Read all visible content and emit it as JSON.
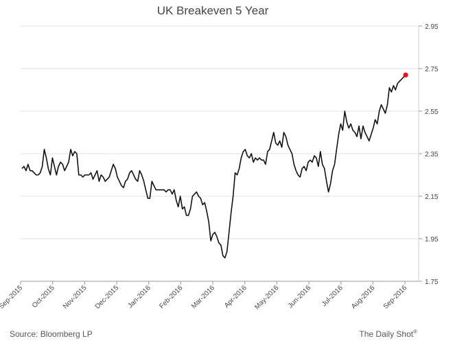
{
  "chart_data": {
    "type": "line",
    "title": "UK Breakeven 5 Year",
    "xlabel": "",
    "ylabel": "",
    "ylim": [
      1.75,
      2.95
    ],
    "yticks": [
      1.75,
      1.95,
      2.15,
      2.35,
      2.55,
      2.75,
      2.95
    ],
    "xticks": [
      "Sep-2015",
      "Oct-2015",
      "Nov-2015",
      "Dec-2015",
      "Jan-2016",
      "Feb-2016",
      "Mar-2016",
      "Apr-2016",
      "May-2016",
      "Jun-2016",
      "Jul-2016",
      "Aug-2016",
      "Sep-2016"
    ],
    "grid": true,
    "series": [
      {
        "color": "#111111",
        "values": [
          2.28,
          2.29,
          2.27,
          2.3,
          2.27,
          2.27,
          2.26,
          2.25,
          2.25,
          2.26,
          2.29,
          2.37,
          2.33,
          2.28,
          2.25,
          2.33,
          2.29,
          2.25,
          2.29,
          2.31,
          2.3,
          2.27,
          2.29,
          2.31,
          2.37,
          2.34,
          2.36,
          2.35,
          2.25,
          2.25,
          2.24,
          2.25,
          2.25,
          2.25,
          2.26,
          2.23,
          2.25,
          2.27,
          2.22,
          2.25,
          2.24,
          2.22,
          2.23,
          2.24,
          2.27,
          2.3,
          2.28,
          2.24,
          2.22,
          2.2,
          2.19,
          2.22,
          2.23,
          2.26,
          2.27,
          2.25,
          2.23,
          2.22,
          2.27,
          2.25,
          2.22,
          2.18,
          2.14,
          2.14,
          2.22,
          2.2,
          2.18,
          2.18,
          2.18,
          2.18,
          2.18,
          2.17,
          2.18,
          2.18,
          2.16,
          2.18,
          2.13,
          2.1,
          2.15,
          2.09,
          2.1,
          2.06,
          2.06,
          2.09,
          2.15,
          2.16,
          2.17,
          2.15,
          2.14,
          2.11,
          2.12,
          2.08,
          2.03,
          1.94,
          1.97,
          1.98,
          1.96,
          1.93,
          1.92,
          1.87,
          1.86,
          1.89,
          1.98,
          2.07,
          2.15,
          2.26,
          2.25,
          2.28,
          2.33,
          2.36,
          2.37,
          2.34,
          2.33,
          2.35,
          2.31,
          2.33,
          2.32,
          2.33,
          2.32,
          2.32,
          2.3,
          2.36,
          2.37,
          2.41,
          2.45,
          2.4,
          2.39,
          2.41,
          2.38,
          2.45,
          2.43,
          2.39,
          2.37,
          2.35,
          2.3,
          2.27,
          2.25,
          2.24,
          2.28,
          2.29,
          2.27,
          2.31,
          2.32,
          2.31,
          2.34,
          2.33,
          2.29,
          2.36,
          2.3,
          2.28,
          2.22,
          2.17,
          2.21,
          2.27,
          2.3,
          2.37,
          2.44,
          2.49,
          2.46,
          2.55,
          2.5,
          2.47,
          2.49,
          2.46,
          2.45,
          2.43,
          2.48,
          2.42,
          2.48,
          2.45,
          2.43,
          2.41,
          2.44,
          2.47,
          2.51,
          2.49,
          2.55,
          2.58,
          2.56,
          2.54,
          2.58,
          2.66,
          2.64,
          2.67,
          2.65,
          2.68,
          2.69,
          2.7,
          2.71,
          2.72
        ]
      }
    ],
    "last_point": {
      "value": 2.72,
      "color": "#e0121b"
    }
  },
  "footer": {
    "source": "Source: Bloomberg LP",
    "brand": "The Daily Shot",
    "brand_mark": "®"
  }
}
